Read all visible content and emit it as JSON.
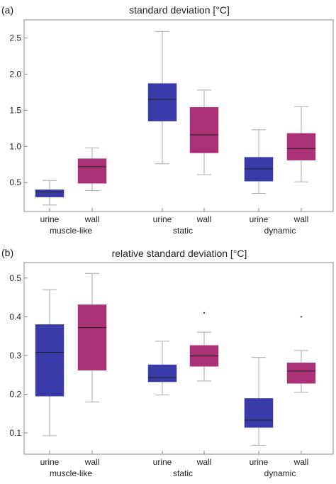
{
  "chart_data": [
    {
      "type": "box",
      "panel_label": "(a)",
      "title": "standard deviation [°C]",
      "ylim": [
        0.1,
        2.75
      ],
      "yticks": [
        0.5,
        1.0,
        1.5,
        2.0,
        2.5
      ],
      "ytick_labels": [
        "0.5",
        "1.0",
        "1.5",
        "2.0",
        "2.5"
      ],
      "categories": [
        "urine",
        "wall",
        "urine",
        "wall",
        "urine",
        "wall"
      ],
      "groups": [
        "muscle-like",
        "static",
        "dynamic"
      ],
      "grid": false,
      "colors": {
        "urine": "#3a3aa8",
        "wall": "#a83274"
      },
      "boxes": [
        {
          "group": "muscle-like",
          "label": "urine",
          "min": 0.19,
          "q1": 0.3,
          "median": 0.37,
          "q3": 0.4,
          "max": 0.53,
          "outliers": []
        },
        {
          "group": "muscle-like",
          "label": "wall",
          "min": 0.39,
          "q1": 0.49,
          "median": 0.72,
          "q3": 0.83,
          "max": 0.98,
          "outliers": []
        },
        {
          "group": "static",
          "label": "urine",
          "min": 0.76,
          "q1": 1.35,
          "median": 1.65,
          "q3": 1.87,
          "max": 2.59,
          "outliers": []
        },
        {
          "group": "static",
          "label": "wall",
          "min": 0.61,
          "q1": 0.91,
          "median": 1.16,
          "q3": 1.54,
          "max": 1.78,
          "outliers": []
        },
        {
          "group": "dynamic",
          "label": "urine",
          "min": 0.35,
          "q1": 0.52,
          "median": 0.69,
          "q3": 0.85,
          "max": 1.23,
          "outliers": []
        },
        {
          "group": "dynamic",
          "label": "wall",
          "min": 0.51,
          "q1": 0.81,
          "median": 0.97,
          "q3": 1.18,
          "max": 1.55,
          "outliers": []
        }
      ]
    },
    {
      "type": "box",
      "panel_label": "(b)",
      "title": "relative standard deviation [°C]",
      "ylim": [
        0.045,
        0.54
      ],
      "yticks": [
        0.1,
        0.2,
        0.3,
        0.4,
        0.5
      ],
      "ytick_labels": [
        "0.1",
        "0.2",
        "0.3",
        "0.4",
        "0.5"
      ],
      "categories": [
        "urine",
        "wall",
        "urine",
        "wall",
        "urine",
        "wall"
      ],
      "groups": [
        "muscle-like",
        "static",
        "dynamic"
      ],
      "grid": false,
      "colors": {
        "urine": "#3a3aa8",
        "wall": "#a83274"
      },
      "boxes": [
        {
          "group": "muscle-like",
          "label": "urine",
          "min": 0.093,
          "q1": 0.195,
          "median": 0.308,
          "q3": 0.38,
          "max": 0.47,
          "outliers": []
        },
        {
          "group": "muscle-like",
          "label": "wall",
          "min": 0.18,
          "q1": 0.262,
          "median": 0.372,
          "q3": 0.431,
          "max": 0.512,
          "outliers": []
        },
        {
          "group": "static",
          "label": "urine",
          "min": 0.198,
          "q1": 0.232,
          "median": 0.243,
          "q3": 0.276,
          "max": 0.337,
          "outliers": []
        },
        {
          "group": "static",
          "label": "wall",
          "min": 0.234,
          "q1": 0.272,
          "median": 0.299,
          "q3": 0.326,
          "max": 0.36,
          "outliers": [
            0.41
          ]
        },
        {
          "group": "dynamic",
          "label": "urine",
          "min": 0.068,
          "q1": 0.114,
          "median": 0.133,
          "q3": 0.189,
          "max": 0.295,
          "outliers": []
        },
        {
          "group": "dynamic",
          "label": "wall",
          "min": 0.205,
          "q1": 0.228,
          "median": 0.26,
          "q3": 0.281,
          "max": 0.313,
          "outliers": [
            0.4
          ]
        }
      ]
    }
  ]
}
